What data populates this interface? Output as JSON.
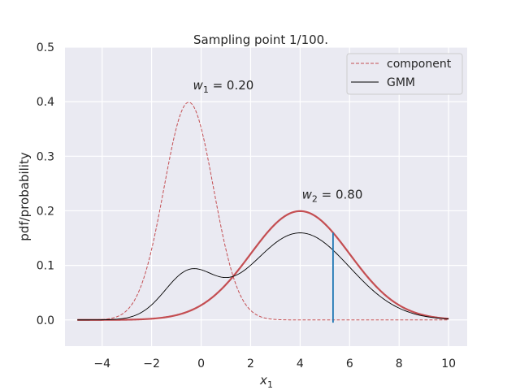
{
  "chart_data": {
    "type": "line",
    "title": "Sampling point 1/100.",
    "xlabel_base": "x",
    "xlabel_sub": "1",
    "ylabel": "pdf/probability",
    "xlim": [
      -5.5,
      10.75
    ],
    "ylim": [
      -0.048,
      0.5
    ],
    "x_ticks": [
      -4,
      -2,
      0,
      2,
      4,
      6,
      8,
      10
    ],
    "x_tick_labels": [
      "−4",
      "−2",
      "0",
      "2",
      "4",
      "6",
      "8",
      "10"
    ],
    "y_ticks": [
      0.0,
      0.1,
      0.2,
      0.3,
      0.4,
      0.5
    ],
    "y_tick_labels": [
      "0.0",
      "0.1",
      "0.2",
      "0.3",
      "0.4",
      "0.5"
    ],
    "grid": true,
    "legend_position": "top-right",
    "legend": [
      {
        "label": "component",
        "style": "dashed",
        "color": "#c44e52"
      },
      {
        "label": "GMM",
        "style": "solid",
        "color": "#000000"
      }
    ],
    "components": [
      {
        "weight_label_base": "w",
        "weight_label_sub": "1",
        "weight_label_value": " = 0.20",
        "weight": 0.2,
        "mean": -0.5,
        "std": 1.0,
        "anno_x": 0.9,
        "anno_y": 0.43
      },
      {
        "weight_label_base": "w",
        "weight_label_sub": "2",
        "weight_label_value": " = 0.80",
        "weight": 0.8,
        "mean": 4.0,
        "std": 2.0,
        "anno_x": 5.3,
        "anno_y": 0.23
      }
    ],
    "highlighted_component": 2,
    "sample_point": {
      "x": 5.33,
      "y_bottom": -0.005
    },
    "x_range": [
      -5,
      10
    ],
    "colors": {
      "background": "#eaeaf2",
      "grid": "#ffffff",
      "component": "#c44e52",
      "gmm": "#000000",
      "sample": "#1f77b4"
    }
  }
}
